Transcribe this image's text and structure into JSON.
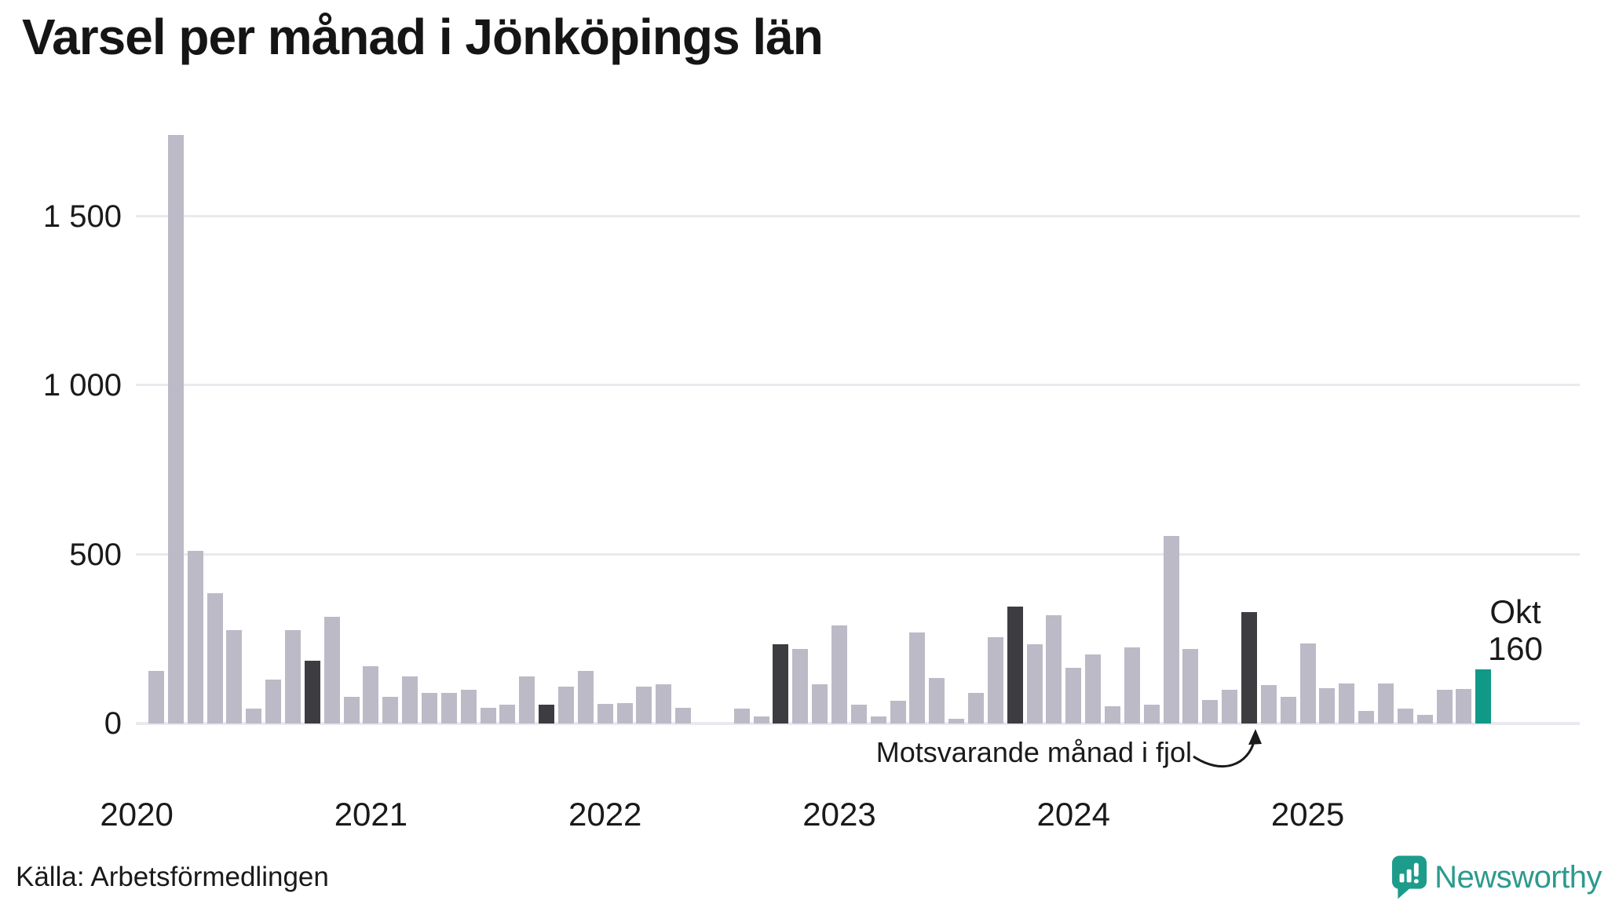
{
  "title": "Varsel per månad i Jönköpings län",
  "annotation": "Motsvarande månad i fjol",
  "latest_label": {
    "line1": "Okt",
    "line2": "160"
  },
  "footer": {
    "source": "Källa: Arbetsförmedlingen",
    "brand": "Newsworthy"
  },
  "colors": {
    "bar": "#bcbac6",
    "same_month_last_years": "#3d3c41",
    "current_month": "#119988",
    "brand_teal": "#2c9a8e",
    "logo_icon": "#1d9c8c",
    "grid": "#e9e9ef",
    "text": "#1a1a1a"
  },
  "chart_data": {
    "type": "bar",
    "title": "Varsel per månad i Jönköpings län",
    "ylim": [
      0,
      1800
    ],
    "yticks": [
      0,
      500,
      1000,
      1500
    ],
    "ytick_labels": [
      "0",
      "500",
      "1 000",
      "1 500"
    ],
    "grid": true,
    "year_labels": [
      "2020",
      "2021",
      "2022",
      "2023",
      "2024",
      "2025"
    ],
    "highlight_months": [
      "2020-10",
      "2021-10",
      "2022-10",
      "2023-10",
      "2024-10"
    ],
    "current_month": "2025-10",
    "points": [
      {
        "m": "2020-02",
        "v": 155
      },
      {
        "m": "2020-03",
        "v": 1740
      },
      {
        "m": "2020-04",
        "v": 510
      },
      {
        "m": "2020-05",
        "v": 385
      },
      {
        "m": "2020-06",
        "v": 275
      },
      {
        "m": "2020-07",
        "v": 45
      },
      {
        "m": "2020-08",
        "v": 130
      },
      {
        "m": "2020-09",
        "v": 275
      },
      {
        "m": "2020-10",
        "v": 185
      },
      {
        "m": "2020-11",
        "v": 315
      },
      {
        "m": "2020-12",
        "v": 80
      },
      {
        "m": "2021-01",
        "v": 170
      },
      {
        "m": "2021-02",
        "v": 80
      },
      {
        "m": "2021-03",
        "v": 140
      },
      {
        "m": "2021-04",
        "v": 90
      },
      {
        "m": "2021-05",
        "v": 90
      },
      {
        "m": "2021-06",
        "v": 100
      },
      {
        "m": "2021-07",
        "v": 47
      },
      {
        "m": "2021-08",
        "v": 55
      },
      {
        "m": "2021-09",
        "v": 140
      },
      {
        "m": "2021-10",
        "v": 55
      },
      {
        "m": "2021-11",
        "v": 110
      },
      {
        "m": "2021-12",
        "v": 155
      },
      {
        "m": "2022-01",
        "v": 58
      },
      {
        "m": "2022-02",
        "v": 60
      },
      {
        "m": "2022-03",
        "v": 110
      },
      {
        "m": "2022-04",
        "v": 115
      },
      {
        "m": "2022-05",
        "v": 47
      },
      {
        "m": "2022-06",
        "v": 0
      },
      {
        "m": "2022-07",
        "v": 0
      },
      {
        "m": "2022-08",
        "v": 45
      },
      {
        "m": "2022-09",
        "v": 20
      },
      {
        "m": "2022-10",
        "v": 235
      },
      {
        "m": "2022-11",
        "v": 220
      },
      {
        "m": "2022-12",
        "v": 115
      },
      {
        "m": "2023-01",
        "v": 290
      },
      {
        "m": "2023-02",
        "v": 55
      },
      {
        "m": "2023-03",
        "v": 20
      },
      {
        "m": "2023-04",
        "v": 67
      },
      {
        "m": "2023-05",
        "v": 270
      },
      {
        "m": "2023-06",
        "v": 135
      },
      {
        "m": "2023-07",
        "v": 15
      },
      {
        "m": "2023-08",
        "v": 90
      },
      {
        "m": "2023-09",
        "v": 255
      },
      {
        "m": "2023-10",
        "v": 345
      },
      {
        "m": "2023-11",
        "v": 235
      },
      {
        "m": "2023-12",
        "v": 320
      },
      {
        "m": "2024-01",
        "v": 165
      },
      {
        "m": "2024-02",
        "v": 205
      },
      {
        "m": "2024-03",
        "v": 50
      },
      {
        "m": "2024-04",
        "v": 225
      },
      {
        "m": "2024-05",
        "v": 55
      },
      {
        "m": "2024-06",
        "v": 555
      },
      {
        "m": "2024-07",
        "v": 220
      },
      {
        "m": "2024-08",
        "v": 70
      },
      {
        "m": "2024-09",
        "v": 100
      },
      {
        "m": "2024-10",
        "v": 330
      },
      {
        "m": "2024-11",
        "v": 113
      },
      {
        "m": "2024-12",
        "v": 78
      },
      {
        "m": "2025-01",
        "v": 237
      },
      {
        "m": "2025-02",
        "v": 105
      },
      {
        "m": "2025-03",
        "v": 118
      },
      {
        "m": "2025-04",
        "v": 37
      },
      {
        "m": "2025-05",
        "v": 118
      },
      {
        "m": "2025-06",
        "v": 45
      },
      {
        "m": "2025-07",
        "v": 26
      },
      {
        "m": "2025-08",
        "v": 100
      },
      {
        "m": "2025-09",
        "v": 102
      },
      {
        "m": "2025-10",
        "v": 160
      }
    ]
  }
}
